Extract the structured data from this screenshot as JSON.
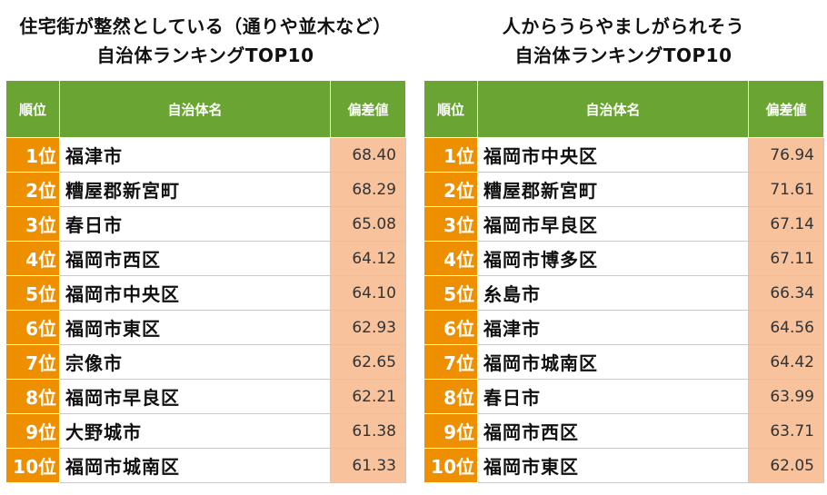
{
  "left": {
    "title_line1": "住宅街が整然としている（通りや並木など）",
    "title_line2": "自治体ランキングTOP10",
    "headers": {
      "rank": "順位",
      "name": "自治体名",
      "score": "偏差値"
    },
    "rows": [
      {
        "rank": "1位",
        "name": "福津市",
        "score": "68.40"
      },
      {
        "rank": "2位",
        "name": "糟屋郡新宮町",
        "score": "68.29"
      },
      {
        "rank": "3位",
        "name": "春日市",
        "score": "65.08"
      },
      {
        "rank": "4位",
        "name": "福岡市西区",
        "score": "64.12"
      },
      {
        "rank": "5位",
        "name": "福岡市中央区",
        "score": "64.10"
      },
      {
        "rank": "6位",
        "name": "福岡市東区",
        "score": "62.93"
      },
      {
        "rank": "7位",
        "name": "宗像市",
        "score": "62.65"
      },
      {
        "rank": "8位",
        "name": "福岡市早良区",
        "score": "62.21"
      },
      {
        "rank": "9位",
        "name": "大野城市",
        "score": "61.38"
      },
      {
        "rank": "10位",
        "name": "福岡市城南区",
        "score": "61.33"
      }
    ]
  },
  "right": {
    "title_line1": "人からうらやましがられそう",
    "title_line2": "自治体ランキングTOP10",
    "headers": {
      "rank": "順位",
      "name": "自治体名",
      "score": "偏差値"
    },
    "rows": [
      {
        "rank": "1位",
        "name": "福岡市中央区",
        "score": "76.94"
      },
      {
        "rank": "2位",
        "name": "糟屋郡新宮町",
        "score": "71.61"
      },
      {
        "rank": "3位",
        "name": "福岡市早良区",
        "score": "67.14"
      },
      {
        "rank": "4位",
        "name": "福岡市博多区",
        "score": "67.11"
      },
      {
        "rank": "5位",
        "name": "糸島市",
        "score": "66.34"
      },
      {
        "rank": "6位",
        "name": "福津市",
        "score": "64.56"
      },
      {
        "rank": "7位",
        "name": "福岡市城南区",
        "score": "64.42"
      },
      {
        "rank": "8位",
        "name": "春日市",
        "score": "63.99"
      },
      {
        "rank": "9位",
        "name": "福岡市西区",
        "score": "63.71"
      },
      {
        "rank": "10位",
        "name": "福岡市東区",
        "score": "62.05"
      }
    ]
  },
  "colors": {
    "header_green": "#6aa533",
    "rank_orange": "#ee8f00",
    "score_peach": "#f7c29c"
  }
}
